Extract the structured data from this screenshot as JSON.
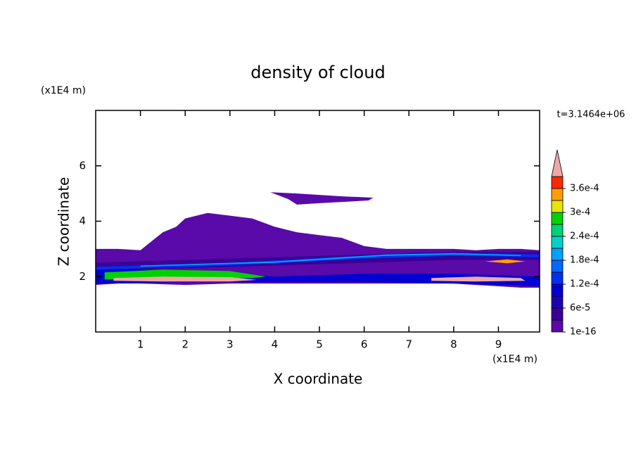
{
  "chart_data": {
    "type": "contour",
    "title": "density of cloud",
    "x_label": "X coordinate",
    "y_label": "Z coordinate",
    "x_unit": "(x1E4 m)",
    "y_unit": "(x1E4 m)",
    "annotation": "t=3.1464e+06",
    "xlim": [
      0,
      9.92
    ],
    "ylim": [
      0,
      8
    ],
    "xticks": [
      1,
      2,
      3,
      4,
      5,
      6,
      7,
      8,
      9
    ],
    "yticks": [
      2,
      4,
      6
    ],
    "levels": [
      1e-16,
      3e-05,
      6e-05,
      9e-05,
      0.00012,
      0.00015,
      0.00018,
      0.00021,
      0.00024,
      0.00027,
      0.0003,
      0.00033,
      0.00036,
      0.00039
    ],
    "colors": [
      "#5a0aa8",
      "#3a0096",
      "#1e00b4",
      "#0000d2",
      "#0030f0",
      "#0068ff",
      "#00a0ff",
      "#00d2c8",
      "#00d278",
      "#00d200",
      "#e6e600",
      "#ffa000",
      "#ff2800"
    ],
    "extend_color": "#f0a8a8",
    "colorbar_ticks": [
      {
        "value": 1e-16,
        "label": "1e-16"
      },
      {
        "value": 6e-05,
        "label": "6e-5"
      },
      {
        "value": 0.00012,
        "label": "1.2e-4"
      },
      {
        "value": 0.00018,
        "label": "1.8e-4"
      },
      {
        "value": 0.00024,
        "label": "2.4e-4"
      },
      {
        "value": 0.0003,
        "label": "3e-4"
      },
      {
        "value": 0.00036,
        "label": "3.6e-4"
      }
    ],
    "regions": [
      {
        "level": 1e-16,
        "x": [
          0,
          0,
          0.5,
          1.0,
          1.5,
          1.8,
          2.0,
          2.5,
          3.0,
          3.5,
          4.0,
          4.5,
          5.0,
          5.5,
          6.0,
          6.5,
          7.0,
          7.5,
          8.0,
          8.5,
          9.0,
          9.5,
          9.92,
          9.92,
          9.5,
          9.0,
          8.5,
          8.0,
          7.5,
          7.0,
          6.5,
          6.0,
          5.0,
          4.0,
          3.0,
          2.0,
          1.0,
          0.5
        ],
        "z": [
          1.7,
          3.0,
          3.0,
          2.95,
          3.6,
          3.8,
          4.1,
          4.3,
          4.2,
          4.1,
          3.8,
          3.6,
          3.5,
          3.4,
          3.1,
          3.0,
          3.0,
          3.0,
          3.0,
          2.95,
          3.0,
          3.0,
          2.95,
          1.6,
          1.6,
          1.65,
          1.7,
          1.75,
          1.75,
          1.75,
          1.75,
          1.75,
          1.75,
          1.75,
          1.75,
          1.7,
          1.75,
          1.75
        ]
      },
      {
        "level": 1e-16,
        "x": [
          3.9,
          4.5,
          5.5,
          6.2,
          6.1,
          5.0,
          4.5,
          4.3
        ],
        "z": [
          5.05,
          5.0,
          4.9,
          4.85,
          4.75,
          4.65,
          4.6,
          4.8
        ]
      },
      {
        "level": 3e-05,
        "x": [
          0,
          2,
          4,
          6,
          8,
          9.92,
          9.92,
          8,
          6,
          4,
          2,
          0
        ],
        "z": [
          2.5,
          2.6,
          2.7,
          2.8,
          2.9,
          2.9,
          2.6,
          2.6,
          2.5,
          2.4,
          2.3,
          2.2
        ]
      },
      {
        "level": 9e-05,
        "x": [
          0,
          2,
          4,
          6,
          8,
          9.92,
          9.92,
          8,
          6,
          4,
          2,
          0
        ],
        "z": [
          2.3,
          2.2,
          2.0,
          2.1,
          2.1,
          2.0,
          1.65,
          1.75,
          1.8,
          1.8,
          1.8,
          1.75
        ]
      },
      {
        "level": 0.00012,
        "x": [
          0,
          3,
          6,
          8,
          9.92,
          9.92,
          8,
          6,
          3,
          0
        ],
        "z": [
          2.35,
          2.5,
          2.75,
          2.85,
          2.8,
          2.7,
          2.75,
          2.65,
          2.4,
          2.25
        ]
      },
      {
        "level": 0.00018,
        "x": [
          1,
          4,
          6.5,
          8,
          9.5,
          9.5,
          8,
          6.5,
          4,
          1
        ],
        "z": [
          2.4,
          2.55,
          2.8,
          2.85,
          2.78,
          2.74,
          2.8,
          2.75,
          2.5,
          2.36
        ]
      },
      {
        "level": 0.00027,
        "x": [
          0.2,
          1.5,
          3,
          3.8,
          3.5,
          2,
          0.2
        ],
        "z": [
          2.15,
          2.25,
          2.2,
          2.0,
          1.95,
          1.9,
          1.9
        ]
      },
      {
        "level": 0.00033,
        "x": [
          8.7,
          9.2,
          9.6,
          9.2
        ],
        "z": [
          2.55,
          2.62,
          2.55,
          2.48
        ]
      },
      {
        "level": 0.0004,
        "x": [
          0.4,
          1.5,
          3,
          3.6,
          3,
          1.5,
          0.4
        ],
        "z": [
          1.95,
          2.0,
          1.98,
          1.88,
          1.82,
          1.82,
          1.85
        ]
      },
      {
        "level": 0.0004,
        "x": [
          7.5,
          8.5,
          9.5,
          9.6,
          8.5,
          7.5
        ],
        "z": [
          1.95,
          2.0,
          1.95,
          1.85,
          1.82,
          1.85
        ]
      }
    ]
  }
}
